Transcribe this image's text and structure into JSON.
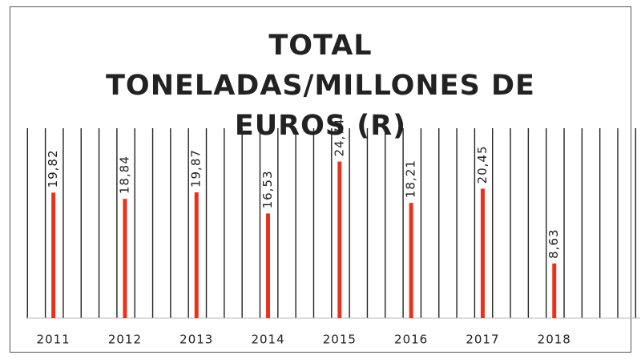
{
  "chart_data": {
    "type": "bar",
    "title": "TOTAL TONELADAS/MILLONES DE EUROS (R)",
    "categories": [
      "2011",
      "2012",
      "2013",
      "2014",
      "2015",
      "2016",
      "2017",
      "2018"
    ],
    "values": [
      19.82,
      18.84,
      19.87,
      16.53,
      24.74,
      18.21,
      20.45,
      8.63
    ],
    "value_labels": [
      "19,82",
      "18,84",
      "19,87",
      "16,53",
      "24,74",
      "18,21",
      "20,45",
      "8,63"
    ],
    "color": "#e8321e",
    "ylim": [
      0,
      30
    ],
    "grid": true
  }
}
